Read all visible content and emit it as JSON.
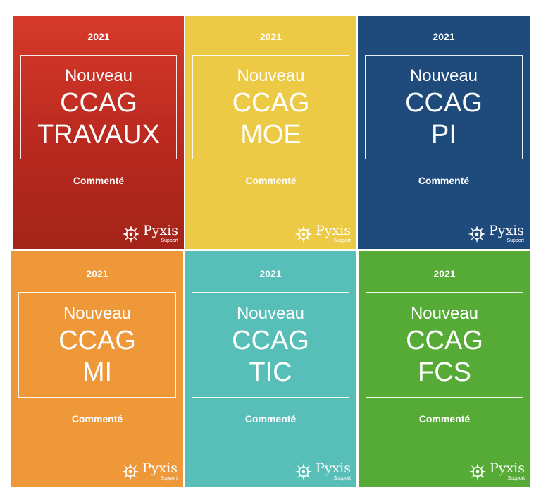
{
  "covers": [
    {
      "year": "2021",
      "line1": "Nouveau",
      "line2": "CCAG",
      "line3": "TRAVAUX",
      "commented": "Commenté",
      "brand": "Pyxis",
      "brand_sub": "Support",
      "color": "#c5301f"
    },
    {
      "year": "2021",
      "line1": "Nouveau",
      "line2": "CCAG",
      "line3": "MOE",
      "commented": "Commenté",
      "brand": "Pyxis",
      "brand_sub": "Support",
      "color": "#ecca45"
    },
    {
      "year": "2021",
      "line1": "Nouveau",
      "line2": "CCAG",
      "line3": "PI",
      "commented": "Commenté",
      "brand": "Pyxis",
      "brand_sub": "Support",
      "color": "#1f4b7c"
    },
    {
      "year": "2021",
      "line1": "Nouveau",
      "line2": "CCAG",
      "line3": "MI",
      "commented": "Commenté",
      "brand": "Pyxis",
      "brand_sub": "Support",
      "color": "#ee983a"
    },
    {
      "year": "2021",
      "line1": "Nouveau",
      "line2": "CCAG",
      "line3": "TIC",
      "commented": "Commenté",
      "brand": "Pyxis",
      "brand_sub": "Support",
      "color": "#58bfb8"
    },
    {
      "year": "2021",
      "line1": "Nouveau",
      "line2": "CCAG",
      "line3": "FCS",
      "commented": "Commenté",
      "brand": "Pyxis",
      "brand_sub": "Support",
      "color": "#55ab36"
    }
  ],
  "logo_icon": "compass-rose-icon"
}
